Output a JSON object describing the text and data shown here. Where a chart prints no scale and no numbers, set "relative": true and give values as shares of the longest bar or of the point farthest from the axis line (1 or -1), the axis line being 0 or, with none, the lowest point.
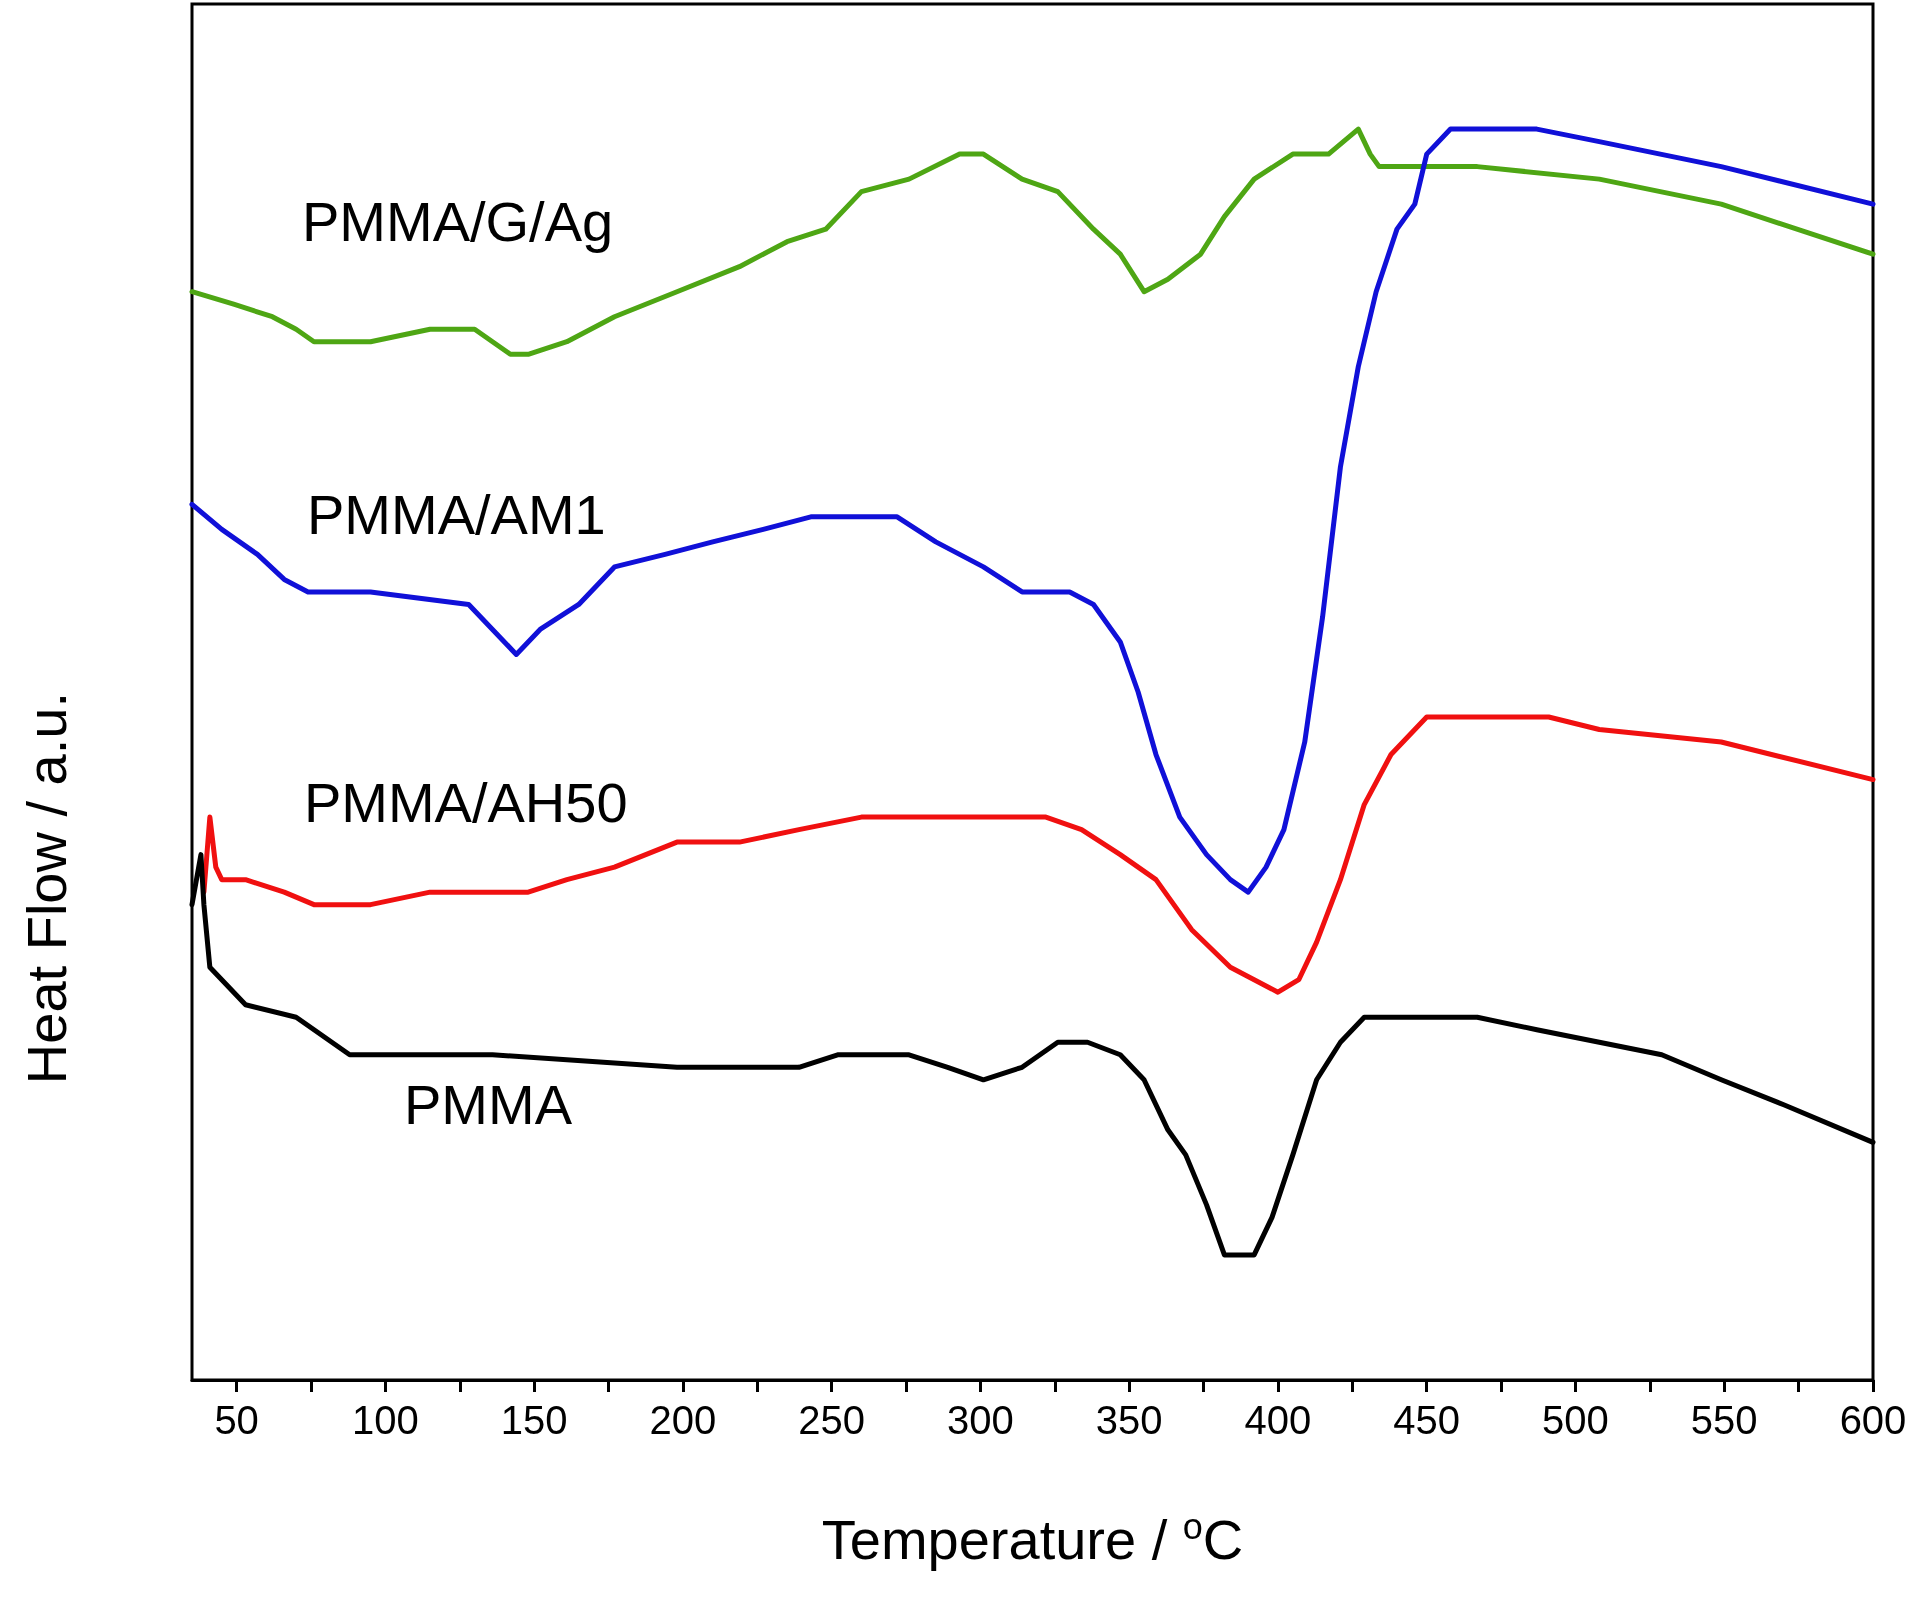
{
  "chart_data": {
    "type": "line",
    "relative": true,
    "xlabel": "Temperature / $^{o}$C",
    "ylabel": "Heat Flow / a.u.",
    "xlim": [
      35,
      600
    ],
    "xticks": [
      50,
      {
        "value": 75,
        "label": null
      },
      100,
      {
        "value": 125,
        "label": null
      },
      150,
      {
        "value": 175,
        "label": null
      },
      200,
      {
        "value": 225,
        "label": null
      },
      250,
      {
        "value": 275,
        "label": null
      },
      300,
      {
        "value": 325,
        "label": null
      },
      350,
      {
        "value": 375,
        "label": null
      },
      400,
      {
        "value": 425,
        "label": null
      },
      450,
      {
        "value": 475,
        "label": null
      },
      500,
      {
        "value": 525,
        "label": null
      },
      550,
      {
        "value": 575,
        "label": null
      },
      600
    ],
    "grid": false,
    "legend": false,
    "marker": "none",
    "line_style": "solid",
    "series": [
      {
        "name": "PMMA/G/Ag",
        "color": "#4ea614",
        "x": [
          35,
          49,
          62,
          70,
          76,
          95,
          115,
          130,
          136,
          142,
          148,
          161,
          177,
          198,
          219,
          235,
          248,
          260,
          276,
          293,
          301,
          314,
          326,
          338,
          347,
          355,
          363,
          374,
          382,
          392,
          405,
          417,
          427,
          431,
          434,
          467,
          508,
          549,
          600
        ],
        "values": [
          0.87,
          0.86,
          0.85,
          0.84,
          0.83,
          0.83,
          0.84,
          0.84,
          0.83,
          0.82,
          0.82,
          0.83,
          0.85,
          0.87,
          0.89,
          0.91,
          0.92,
          0.95,
          0.96,
          0.98,
          0.98,
          0.96,
          0.95,
          0.92,
          0.9,
          0.87,
          0.88,
          0.9,
          0.93,
          0.96,
          0.98,
          0.98,
          1.0,
          0.98,
          0.97,
          0.97,
          0.96,
          0.94,
          0.9
        ]
      },
      {
        "name": "PMMA/AM1",
        "color": "#1010d8",
        "x": [
          35,
          45,
          57,
          66,
          74,
          95,
          128,
          136,
          144,
          152,
          165,
          177,
          194,
          210,
          227,
          243,
          260,
          272,
          285,
          301,
          314,
          330,
          338,
          347,
          353,
          359,
          367,
          376,
          384,
          390,
          396,
          402,
          409,
          415,
          421,
          427,
          433,
          440,
          446,
          450,
          458,
          487,
          508,
          549,
          600
        ],
        "values": [
          0.7,
          0.68,
          0.66,
          0.64,
          0.63,
          0.63,
          0.62,
          0.6,
          0.58,
          0.6,
          0.62,
          0.65,
          0.66,
          0.67,
          0.68,
          0.69,
          0.69,
          0.69,
          0.67,
          0.65,
          0.63,
          0.63,
          0.62,
          0.59,
          0.55,
          0.5,
          0.45,
          0.42,
          0.4,
          0.39,
          0.41,
          0.44,
          0.51,
          0.61,
          0.73,
          0.81,
          0.87,
          0.92,
          0.94,
          0.98,
          1.0,
          1.0,
          0.99,
          0.97,
          0.94
        ]
      },
      {
        "name": "PMMA/AH50",
        "color": "#f01010",
        "x": [
          39,
          41,
          43,
          45,
          53,
          66,
          76,
          95,
          115,
          136,
          148,
          161,
          177,
          198,
          219,
          239,
          260,
          301,
          322,
          334,
          347,
          359,
          371,
          384,
          392,
          400,
          407,
          413,
          421,
          429,
          438,
          450,
          467,
          491,
          508,
          549,
          600
        ],
        "values": [
          0.39,
          0.45,
          0.41,
          0.4,
          0.4,
          0.39,
          0.38,
          0.38,
          0.39,
          0.39,
          0.39,
          0.4,
          0.41,
          0.43,
          0.43,
          0.44,
          0.45,
          0.45,
          0.45,
          0.44,
          0.42,
          0.4,
          0.36,
          0.33,
          0.32,
          0.31,
          0.32,
          0.35,
          0.4,
          0.46,
          0.5,
          0.53,
          0.53,
          0.53,
          0.52,
          0.51,
          0.48
        ]
      },
      {
        "name": "PMMA",
        "color": "#000000",
        "x": [
          35,
          38,
          39,
          41,
          45,
          53,
          70,
          82,
          88,
          136,
          198,
          239,
          252,
          264,
          276,
          289,
          301,
          314,
          326,
          336,
          347,
          355,
          363,
          369,
          376,
          382,
          386,
          392,
          398,
          405,
          413,
          421,
          429,
          442,
          467,
          487,
          508,
          529,
          549,
          570,
          600
        ],
        "values": [
          0.38,
          0.42,
          0.38,
          0.33,
          0.32,
          0.3,
          0.29,
          0.27,
          0.26,
          0.26,
          0.25,
          0.25,
          0.26,
          0.26,
          0.26,
          0.25,
          0.24,
          0.25,
          0.27,
          0.27,
          0.26,
          0.24,
          0.2,
          0.18,
          0.14,
          0.1,
          0.1,
          0.1,
          0.13,
          0.18,
          0.24,
          0.27,
          0.29,
          0.29,
          0.29,
          0.28,
          0.27,
          0.26,
          0.24,
          0.22,
          0.19
        ]
      }
    ]
  }
}
